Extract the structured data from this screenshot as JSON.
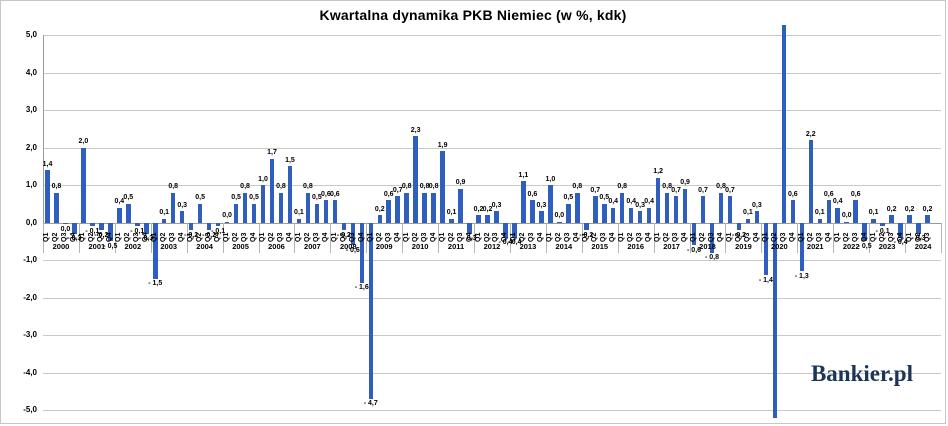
{
  "title": "Kwartalna dynamika PKB Niemiec (w %, kdk)",
  "logo_text": "Bankier.pl",
  "chart_data": {
    "type": "bar",
    "title": "Kwartalna dynamika PKB Niemiec (w %, kdk)",
    "xlabel": "",
    "ylabel": "",
    "unit": "% kdk",
    "ylim": [
      -5.0,
      5.0
    ],
    "grid": true,
    "legend": "none",
    "bar_color": "#2f5fbe",
    "y_ticks": [
      "5,0",
      "4,0",
      "3,0",
      "2,0",
      "1,0",
      "0,0",
      "-1,0",
      "-2,0",
      "-3,0",
      "-4,0",
      "-5,0"
    ],
    "years": [
      {
        "year": "2000",
        "quarters": [
          {
            "q": "Q1",
            "v": 1.4,
            "label": "1,4"
          },
          {
            "q": "Q2",
            "v": 0.8,
            "label": "0,8"
          },
          {
            "q": "Q3",
            "v": -0.05,
            "label": "0,0"
          },
          {
            "q": "Q4",
            "v": -0.3,
            "label": "- 0,3"
          }
        ]
      },
      {
        "year": "2001",
        "quarters": [
          {
            "q": "Q1",
            "v": 2.0,
            "label": "2,0"
          },
          {
            "q": "Q2",
            "v": -0.1,
            "label": "- 0,1"
          },
          {
            "q": "Q3",
            "v": -0.2,
            "label": "- 0,2"
          },
          {
            "q": "Q4",
            "v": -0.5,
            "label": "- 0,5"
          }
        ]
      },
      {
        "year": "2002",
        "quarters": [
          {
            "q": "Q1",
            "v": 0.4,
            "label": "0,4"
          },
          {
            "q": "Q2",
            "v": 0.5,
            "label": "0,5"
          },
          {
            "q": "Q3",
            "v": -0.1,
            "label": "- 0,1"
          },
          {
            "q": "Q4",
            "v": -0.3,
            "label": "- 0,3"
          }
        ]
      },
      {
        "year": "2003",
        "quarters": [
          {
            "q": "Q1",
            "v": -1.5,
            "label": "- 1,5"
          },
          {
            "q": "Q2",
            "v": 0.1,
            "label": "0,1"
          },
          {
            "q": "Q3",
            "v": 0.8,
            "label": "0,8"
          },
          {
            "q": "Q4",
            "v": 0.3,
            "label": "0,3"
          }
        ]
      },
      {
        "year": "2004",
        "quarters": [
          {
            "q": "Q1",
            "v": -0.2,
            "label": "- 0,2"
          },
          {
            "q": "Q2",
            "v": 0.5,
            "label": "0,5"
          },
          {
            "q": "Q3",
            "v": -0.2,
            "label": "- 0,2"
          },
          {
            "q": "Q4",
            "v": -0.1,
            "label": "- 0,1"
          }
        ]
      },
      {
        "year": "2005",
        "quarters": [
          {
            "q": "Q1",
            "v": 0.0,
            "label": "0,0"
          },
          {
            "q": "Q2",
            "v": 0.5,
            "label": "0,5"
          },
          {
            "q": "Q3",
            "v": 0.8,
            "label": "0,8"
          },
          {
            "q": "Q4",
            "v": 0.5,
            "label": "0,5"
          }
        ]
      },
      {
        "year": "2006",
        "quarters": [
          {
            "q": "Q1",
            "v": 1.0,
            "label": "1,0"
          },
          {
            "q": "Q2",
            "v": 1.7,
            "label": "1,7"
          },
          {
            "q": "Q3",
            "v": 0.8,
            "label": "0,8"
          },
          {
            "q": "Q4",
            "v": 1.5,
            "label": "1,5"
          }
        ]
      },
      {
        "year": "2007",
        "quarters": [
          {
            "q": "Q1",
            "v": 0.1,
            "label": "0,1"
          },
          {
            "q": "Q2",
            "v": 0.8,
            "label": "0,8"
          },
          {
            "q": "Q3",
            "v": 0.5,
            "label": "0,5"
          },
          {
            "q": "Q4",
            "v": 0.6,
            "label": "0,6"
          }
        ]
      },
      {
        "year": "2008",
        "quarters": [
          {
            "q": "Q1",
            "v": 0.6,
            "label": "0,6"
          },
          {
            "q": "Q2",
            "v": -0.2,
            "label": "- 0,2"
          },
          {
            "q": "Q3",
            "v": -0.6,
            "label": "- 0,6"
          },
          {
            "q": "Q4",
            "v": -1.6,
            "label": "- 1,6"
          }
        ]
      },
      {
        "year": "2009",
        "quarters": [
          {
            "q": "Q1",
            "v": -4.7,
            "label": "- 4,7"
          },
          {
            "q": "Q2",
            "v": 0.2,
            "label": "0,2"
          },
          {
            "q": "Q3",
            "v": 0.6,
            "label": "0,6"
          },
          {
            "q": "Q4",
            "v": 0.7,
            "label": "0,7"
          }
        ]
      },
      {
        "year": "2010",
        "quarters": [
          {
            "q": "Q1",
            "v": 0.8,
            "label": "0,8"
          },
          {
            "q": "Q2",
            "v": 2.3,
            "label": "2,3"
          },
          {
            "q": "Q3",
            "v": 0.8,
            "label": "0,8"
          },
          {
            "q": "Q4",
            "v": 0.8,
            "label": "0,8"
          }
        ]
      },
      {
        "year": "2011",
        "quarters": [
          {
            "q": "Q1",
            "v": 1.9,
            "label": "1,9"
          },
          {
            "q": "Q2",
            "v": 0.1,
            "label": "0,1"
          },
          {
            "q": "Q3",
            "v": 0.9,
            "label": "0,9"
          },
          {
            "q": "Q4",
            "v": -0.3,
            "label": "- 0,3"
          }
        ]
      },
      {
        "year": "2012",
        "quarters": [
          {
            "q": "Q1",
            "v": 0.2,
            "label": "0,2"
          },
          {
            "q": "Q2",
            "v": 0.2,
            "label": "0,2"
          },
          {
            "q": "Q3",
            "v": 0.3,
            "label": "0,3"
          },
          {
            "q": "Q4",
            "v": -0.4,
            "label": "- 0,4"
          }
        ]
      },
      {
        "year": "2013",
        "quarters": [
          {
            "q": "Q1",
            "v": -0.4,
            "label": "- 0,4"
          },
          {
            "q": "Q2",
            "v": 1.1,
            "label": "1,1"
          },
          {
            "q": "Q3",
            "v": 0.6,
            "label": "0,6"
          },
          {
            "q": "Q4",
            "v": 0.3,
            "label": "0,3"
          }
        ]
      },
      {
        "year": "2014",
        "quarters": [
          {
            "q": "Q1",
            "v": 1.0,
            "label": "1,0"
          },
          {
            "q": "Q2",
            "v": 0.0,
            "label": "0,0"
          },
          {
            "q": "Q3",
            "v": 0.5,
            "label": "0,5"
          },
          {
            "q": "Q4",
            "v": 0.8,
            "label": "0,8"
          }
        ]
      },
      {
        "year": "2015",
        "quarters": [
          {
            "q": "Q1",
            "v": -0.2,
            "label": "- 0,2"
          },
          {
            "q": "Q2",
            "v": 0.7,
            "label": "0,7"
          },
          {
            "q": "Q3",
            "v": 0.5,
            "label": "0,5"
          },
          {
            "q": "Q4",
            "v": 0.4,
            "label": "0,4"
          }
        ]
      },
      {
        "year": "2016",
        "quarters": [
          {
            "q": "Q1",
            "v": 0.8,
            "label": "0,8"
          },
          {
            "q": "Q2",
            "v": 0.4,
            "label": "0,4"
          },
          {
            "q": "Q3",
            "v": 0.3,
            "label": "0,3"
          },
          {
            "q": "Q4",
            "v": 0.4,
            "label": "0,4"
          }
        ]
      },
      {
        "year": "2017",
        "quarters": [
          {
            "q": "Q1",
            "v": 1.2,
            "label": "1,2"
          },
          {
            "q": "Q2",
            "v": 0.8,
            "label": "0,8"
          },
          {
            "q": "Q3",
            "v": 0.7,
            "label": "0,7"
          },
          {
            "q": "Q4",
            "v": 0.9,
            "label": "0,9"
          }
        ]
      },
      {
        "year": "2018",
        "quarters": [
          {
            "q": "Q1",
            "v": -0.6,
            "label": "- 0,6"
          },
          {
            "q": "Q2",
            "v": 0.7,
            "label": "0,7"
          },
          {
            "q": "Q3",
            "v": -0.8,
            "label": "- 0,8"
          },
          {
            "q": "Q4",
            "v": 0.8,
            "label": "0,8"
          }
        ]
      },
      {
        "year": "2019",
        "quarters": [
          {
            "q": "Q1",
            "v": 0.7,
            "label": "0,7"
          },
          {
            "q": "Q2",
            "v": -0.2,
            "label": "- 0,2"
          },
          {
            "q": "Q3",
            "v": 0.1,
            "label": "0,1"
          },
          {
            "q": "Q4",
            "v": 0.3,
            "label": "0,3"
          }
        ]
      },
      {
        "year": "2020",
        "quarters": [
          {
            "q": "Q1",
            "v": -1.4,
            "label": "- 1,4"
          },
          {
            "q": "Q2",
            "v": -5.3,
            "label": "",
            "clipped": "below"
          },
          {
            "q": "Q3",
            "v": 5.3,
            "label": "",
            "clipped": "above"
          },
          {
            "q": "Q4",
            "v": 0.6,
            "label": "0,6"
          }
        ]
      },
      {
        "year": "2021",
        "quarters": [
          {
            "q": "Q1",
            "v": -1.3,
            "label": "- 1,3"
          },
          {
            "q": "Q2",
            "v": 2.2,
            "label": "2,2"
          },
          {
            "q": "Q3",
            "v": 0.1,
            "label": "0,1"
          },
          {
            "q": "Q4",
            "v": 0.6,
            "label": "0,6"
          }
        ]
      },
      {
        "year": "2022",
        "quarters": [
          {
            "q": "Q1",
            "v": 0.4,
            "label": "0,4"
          },
          {
            "q": "Q2",
            "v": 0.0,
            "label": "0,0"
          },
          {
            "q": "Q3",
            "v": 0.6,
            "label": "0,6"
          },
          {
            "q": "Q4",
            "v": -0.5,
            "label": "- 0,5"
          }
        ]
      },
      {
        "year": "2023",
        "quarters": [
          {
            "q": "Q1",
            "v": 0.1,
            "label": "0,1"
          },
          {
            "q": "Q2",
            "v": -0.1,
            "label": "- 0,1"
          },
          {
            "q": "Q3",
            "v": 0.2,
            "label": "0,2"
          },
          {
            "q": "Q4",
            "v": -0.4,
            "label": "- 0,4"
          }
        ]
      },
      {
        "year": "2024",
        "quarters": [
          {
            "q": "Q1",
            "v": 0.2,
            "label": "0,2"
          },
          {
            "q": "Q2",
            "v": -0.3,
            "label": "- 0,3"
          },
          {
            "q": "Q3",
            "v": 0.2,
            "label": "0,2"
          }
        ]
      }
    ]
  }
}
